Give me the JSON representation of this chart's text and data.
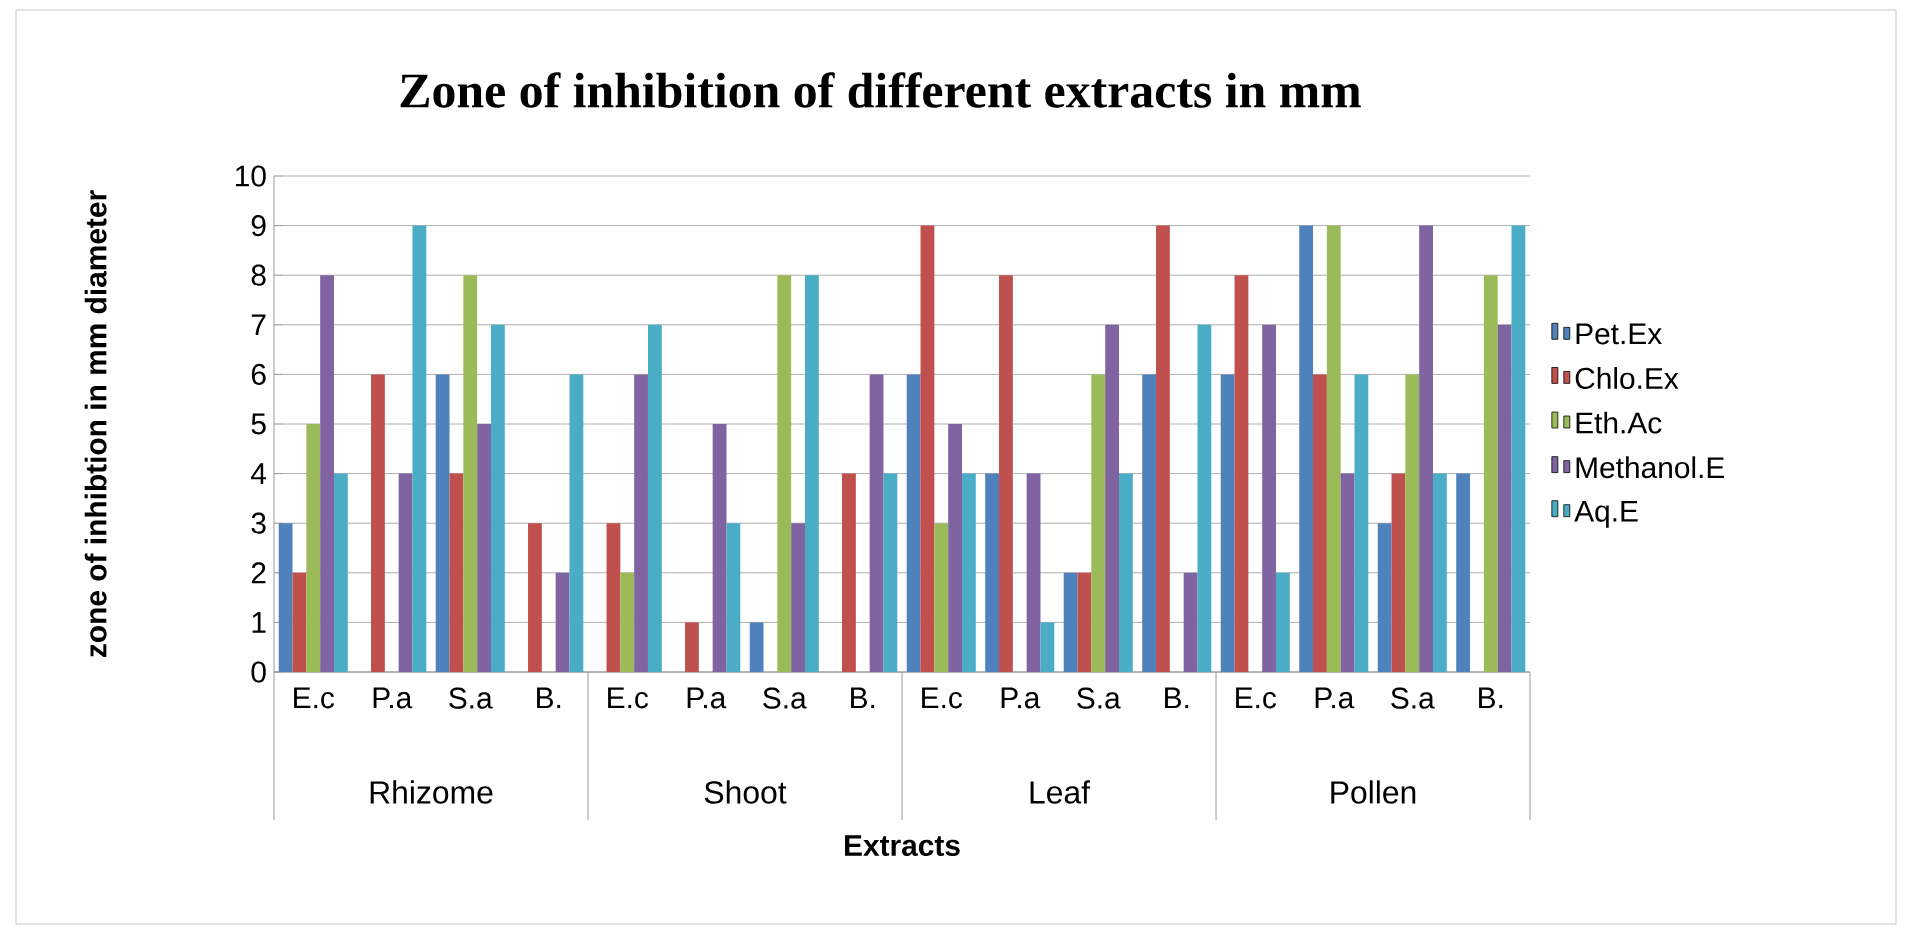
{
  "chart_data": {
    "type": "bar",
    "title": "Zone of inhibition of different extracts in mm",
    "xlabel": "Extracts",
    "ylabel": "zone of inhibtion in mm diameter",
    "categories": [
      "E.c",
      "P.a",
      "S.a",
      "B.",
      "E.c",
      "P.a",
      "S.a",
      "B.",
      "E.c",
      "P.a",
      "S.a",
      "B.",
      "E.c",
      "P.a",
      "S.a",
      "B."
    ],
    "annotations": [
      "Rhizome",
      "Shoot",
      "Leaf",
      "Pollen"
    ],
    "series": [
      {
        "name": "Pet.Ex",
        "color": "#4f81bd",
        "values": [
          3,
          0,
          6,
          0,
          0,
          0,
          1,
          0,
          6,
          4,
          2,
          6,
          6,
          9,
          3,
          4
        ]
      },
      {
        "name": "Chlo.Ex",
        "color": "#c0504d",
        "values": [
          2,
          6,
          4,
          3,
          3,
          1,
          0,
          4,
          9,
          8,
          2,
          9,
          8,
          6,
          4,
          0
        ]
      },
      {
        "name": "Eth.Ac",
        "color": "#9bbb59",
        "values": [
          5,
          0,
          8,
          0,
          2,
          0,
          8,
          0,
          3,
          0,
          6,
          0,
          0,
          9,
          6,
          8
        ]
      },
      {
        "name": "Methanol.E",
        "color": "#8064a2",
        "values": [
          8,
          4,
          5,
          2,
          6,
          5,
          3,
          6,
          5,
          4,
          7,
          2,
          7,
          4,
          9,
          7
        ]
      },
      {
        "name": "Aq.E",
        "color": "#4bacc6",
        "values": [
          4,
          9,
          7,
          6,
          7,
          3,
          8,
          4,
          4,
          1,
          4,
          7,
          2,
          6,
          4,
          9
        ]
      }
    ],
    "ylim": [
      0,
      10
    ],
    "yticks": [
      0,
      1,
      2,
      3,
      4,
      5,
      6,
      7,
      8,
      9,
      10
    ],
    "grid": "y",
    "legend": "right"
  }
}
